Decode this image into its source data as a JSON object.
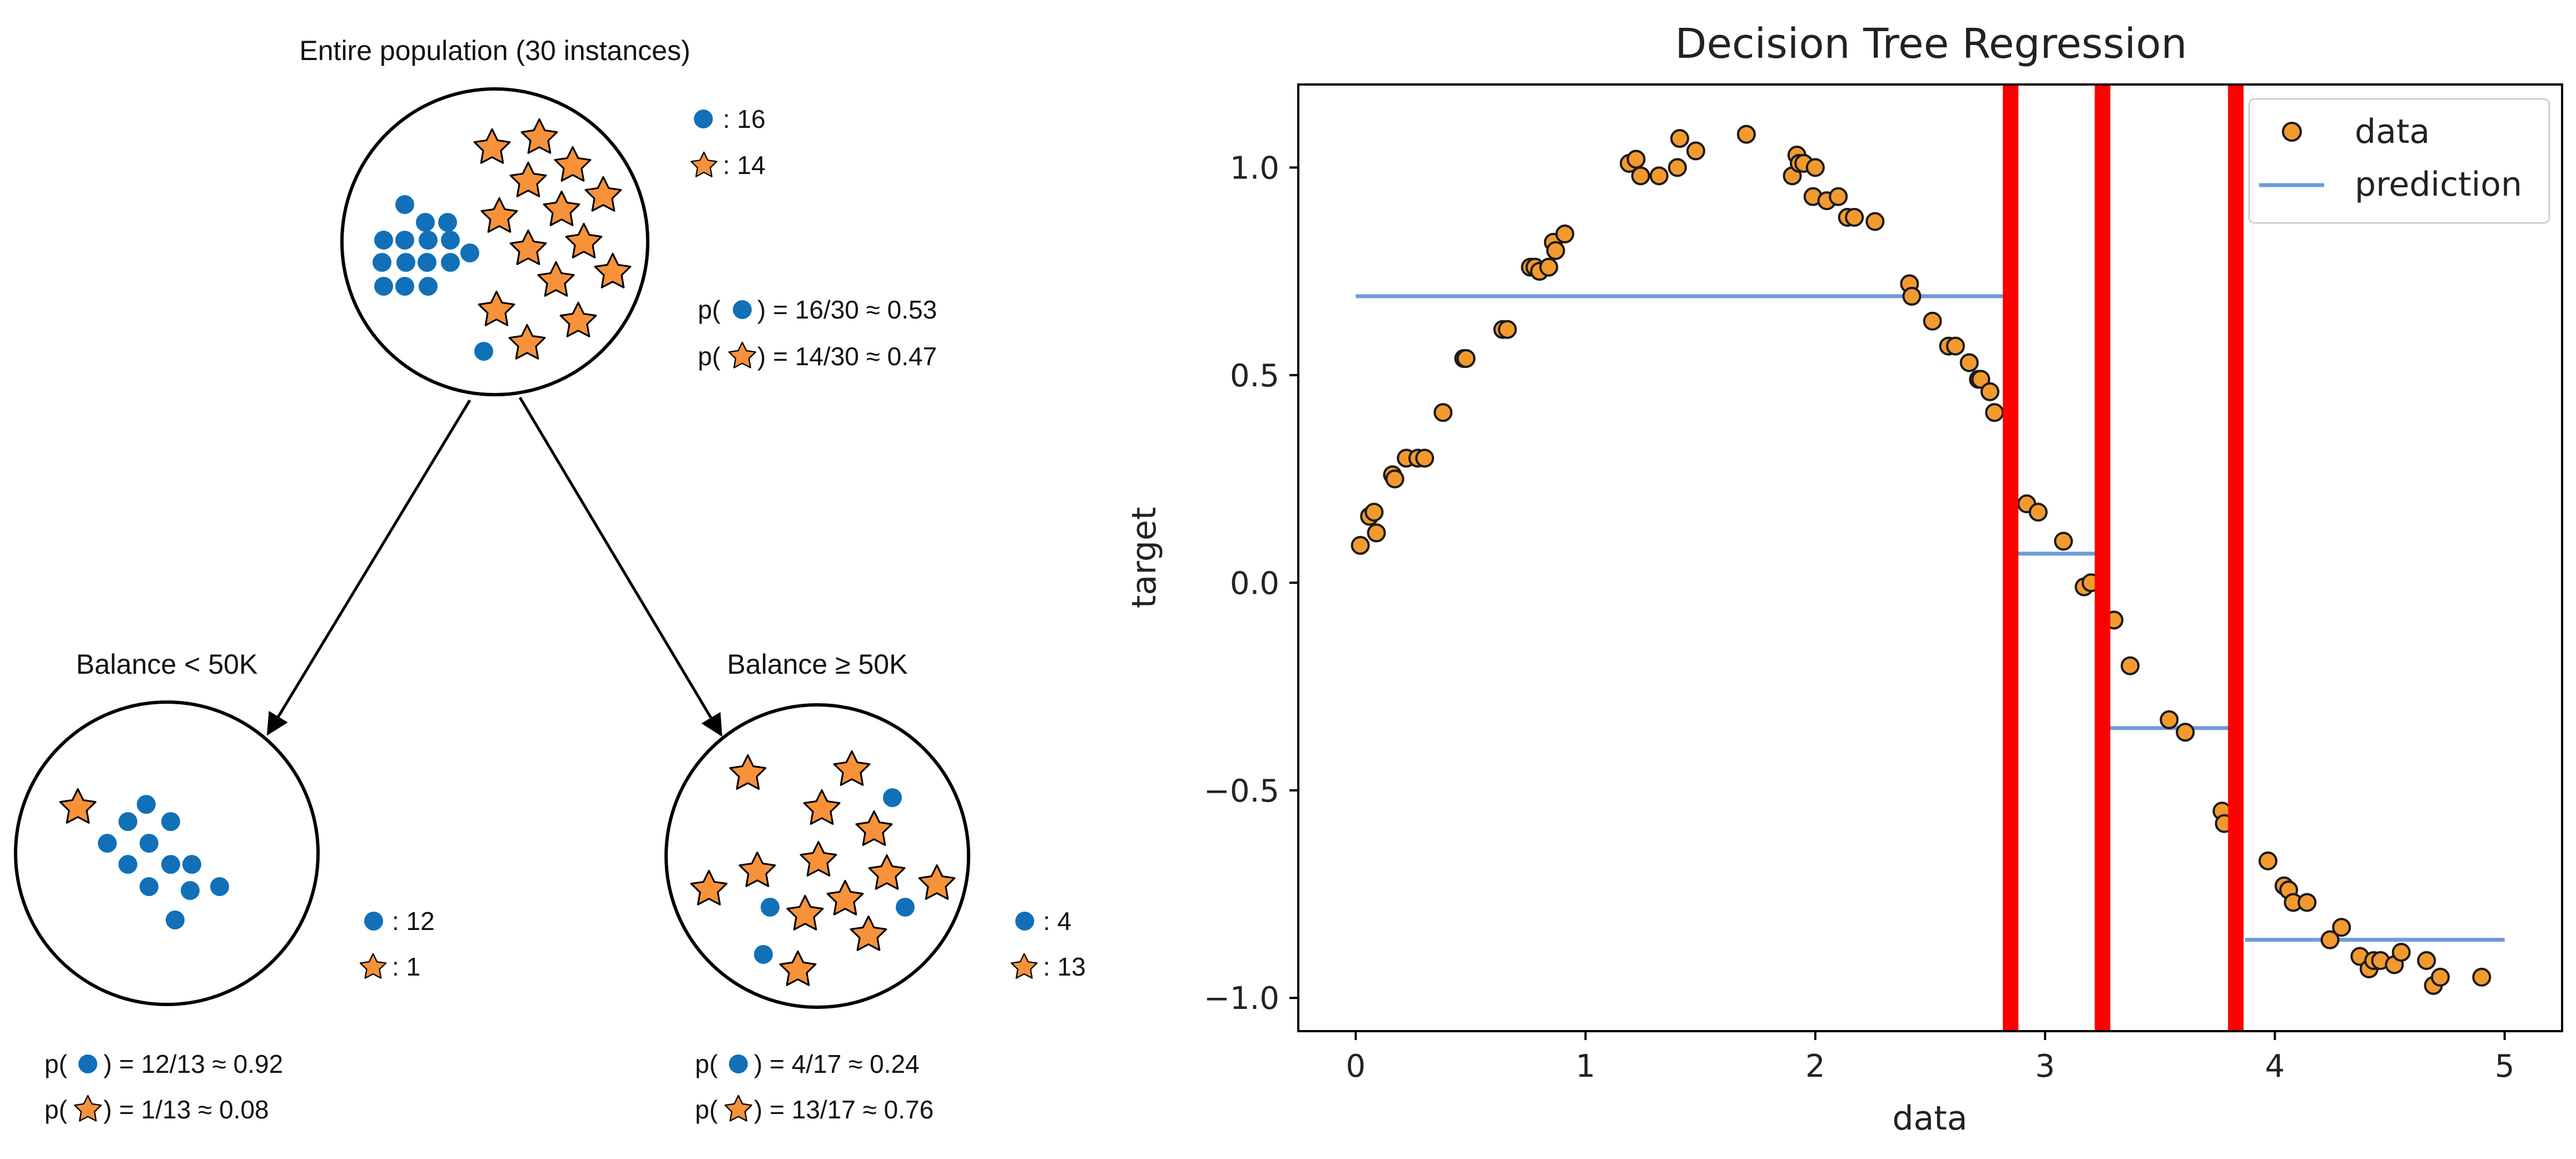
{
  "tree": {
    "root": {
      "title": "Entire population (30 instances)",
      "circle_count_label": ": 16",
      "star_count_label": ": 14",
      "circle_count": 16,
      "star_count": 14,
      "p_circle_prefix": "p(",
      "p_circle_suffix": ") = 16/30 ≈ 0.53",
      "p_star_prefix": "p(",
      "p_star_suffix": ") = 14/30 ≈ 0.47"
    },
    "left": {
      "title": "Balance < 50K",
      "circle_count_label": ": 12",
      "star_count_label": ": 1",
      "circle_count": 12,
      "star_count": 1,
      "p_circle_prefix": "p(",
      "p_circle_suffix": ") = 12/13 ≈ 0.92",
      "p_star_prefix": "p(",
      "p_star_suffix": ") = 1/13 ≈ 0.08"
    },
    "right": {
      "title": "Balance ≥ 50K",
      "circle_count_label": ": 4",
      "star_count_label": ": 13",
      "circle_count": 4,
      "star_count": 13,
      "p_circle_prefix": "p(",
      "p_circle_suffix": ") = 4/17 ≈ 0.24",
      "p_star_prefix": "p(",
      "p_star_suffix": ") = 13/17 ≈ 0.76"
    },
    "colors": {
      "circle": "#1170b8",
      "star": "#f7923a",
      "stroke": "#000000"
    },
    "icons": {
      "circle": "blue-dot-icon",
      "star": "orange-star-icon"
    }
  },
  "chart_data": {
    "type": "scatter",
    "title": "Decision Tree Regression",
    "xlabel": "data",
    "ylabel": "target",
    "xlim": [
      -0.25,
      5.25
    ],
    "ylim": [
      -1.08,
      1.2
    ],
    "xticks": [
      0,
      1,
      2,
      3,
      4,
      5
    ],
    "xtick_labels": [
      "0",
      "1",
      "2",
      "3",
      "4",
      "5"
    ],
    "yticks": [
      -1.0,
      -0.5,
      0.0,
      0.5,
      1.0
    ],
    "ytick_labels": [
      "−1.0",
      "−0.5",
      "0.0",
      "0.5",
      "1.0"
    ],
    "grid": false,
    "legend_position": "top-right",
    "legend": [
      "data",
      "prediction"
    ],
    "colors": {
      "data_fill": "#f39a2e",
      "data_edge": "#1a1a1a",
      "prediction": "#6f9bd8",
      "split": "#ff0000"
    },
    "series": [
      {
        "name": "data",
        "kind": "scatter",
        "x": [
          0.02,
          0.06,
          0.08,
          0.09,
          0.16,
          0.17,
          0.22,
          0.27,
          0.3,
          0.38,
          0.47,
          0.48,
          0.64,
          0.66,
          0.76,
          0.78,
          0.8,
          0.84,
          0.86,
          0.87,
          0.91,
          1.19,
          1.22,
          1.24,
          1.32,
          1.4,
          1.41,
          1.48,
          1.7,
          1.9,
          1.92,
          1.93,
          1.95,
          1.99,
          2.0,
          2.05,
          2.1,
          2.14,
          2.17,
          2.26,
          2.41,
          2.42,
          2.51,
          2.58,
          2.61,
          2.67,
          2.71,
          2.72,
          2.76,
          2.78,
          2.92,
          2.97,
          3.08,
          3.17,
          3.2,
          3.3,
          3.37,
          3.54,
          3.61,
          3.77,
          3.78,
          3.97,
          4.04,
          4.06,
          4.08,
          4.14,
          4.24,
          4.29,
          4.37,
          4.41,
          4.43,
          4.46,
          4.52,
          4.55,
          4.66,
          4.69,
          4.72,
          4.9
        ],
        "y": [
          0.09,
          0.16,
          0.17,
          0.12,
          0.26,
          0.25,
          0.3,
          0.3,
          0.3,
          0.41,
          0.54,
          0.54,
          0.61,
          0.61,
          0.76,
          0.76,
          0.75,
          0.76,
          0.82,
          0.8,
          0.84,
          1.01,
          1.02,
          0.98,
          0.98,
          1.0,
          1.07,
          1.04,
          1.08,
          0.98,
          1.03,
          1.01,
          1.01,
          0.93,
          1.0,
          0.92,
          0.93,
          0.88,
          0.88,
          0.87,
          0.72,
          0.69,
          0.63,
          0.57,
          0.57,
          0.53,
          0.49,
          0.49,
          0.46,
          0.41,
          0.19,
          0.17,
          0.1,
          -0.01,
          0.0,
          -0.09,
          -0.2,
          -0.33,
          -0.36,
          -0.55,
          -0.58,
          -0.67,
          -0.73,
          -0.74,
          -0.77,
          -0.77,
          -0.86,
          -0.83,
          -0.9,
          -0.93,
          -0.91,
          -0.91,
          -0.92,
          -0.89,
          -0.91,
          -0.97,
          -0.95,
          -0.95
        ]
      },
      {
        "name": "prediction",
        "kind": "step",
        "segments": [
          {
            "x0": 0.0,
            "x1": 2.85,
            "y": 0.69
          },
          {
            "x0": 2.88,
            "x1": 3.22,
            "y": 0.07
          },
          {
            "x0": 3.27,
            "x1": 3.8,
            "y": -0.35
          },
          {
            "x0": 3.87,
            "x1": 5.0,
            "y": -0.86
          }
        ]
      }
    ],
    "vertical_lines": [
      2.85,
      3.25,
      3.83
    ]
  }
}
